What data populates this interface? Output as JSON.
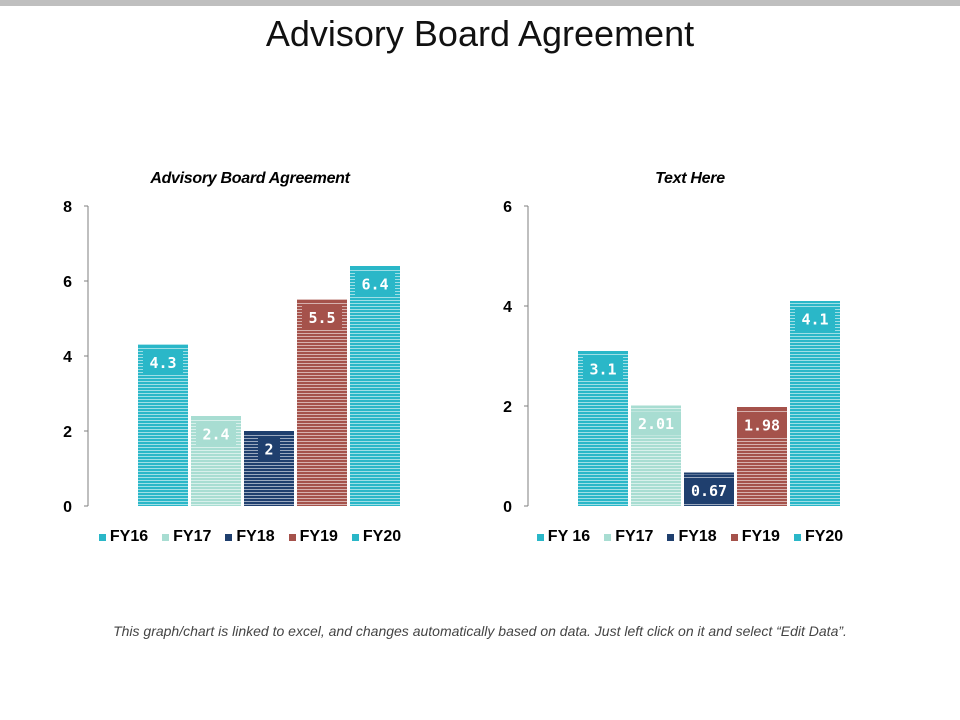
{
  "page": {
    "title": "Advisory Board Agreement",
    "footnote": "This graph/chart is linked to excel, and changes automatically based on data. Just left click on it and select “Edit Data”."
  },
  "colors": {
    "FY16": "#2ab7c8",
    "FY17": "#a8ddd2",
    "FY18": "#1f3f6e",
    "FY19": "#a5524b",
    "FY20": "#2ab7c8",
    "axis": "#7f7f7f"
  },
  "chart_data": [
    {
      "type": "bar",
      "title": "Advisory Board Agreement",
      "categories": [
        "FY16",
        "FY17",
        "FY18",
        "FY19",
        "FY20"
      ],
      "values": [
        4.3,
        2.4,
        2,
        5.5,
        6.4
      ],
      "value_labels": [
        "4.3",
        "2.4",
        "2",
        "5.5",
        "6.4"
      ],
      "legend": [
        "FY16",
        "FY17",
        "FY18",
        "FY19",
        "FY20"
      ],
      "yticks": [
        "0",
        "2",
        "4",
        "6",
        "8"
      ],
      "ylim": [
        0,
        8
      ],
      "legend_position": "bottom",
      "grid": false
    },
    {
      "type": "bar",
      "title": "Text Here",
      "categories": [
        "FY 16",
        "FY17",
        "FY18",
        "FY19",
        "FY20"
      ],
      "values": [
        3.1,
        2.01,
        0.67,
        1.98,
        4.1
      ],
      "value_labels": [
        "3.1",
        "2.01",
        "0.67",
        "1.98",
        "4.1"
      ],
      "legend": [
        "FY 16",
        "FY17",
        "FY18",
        "FY19",
        "FY20"
      ],
      "yticks": [
        "0",
        "2",
        "4",
        "6"
      ],
      "ylim": [
        0,
        6
      ],
      "legend_position": "bottom",
      "grid": false
    }
  ]
}
